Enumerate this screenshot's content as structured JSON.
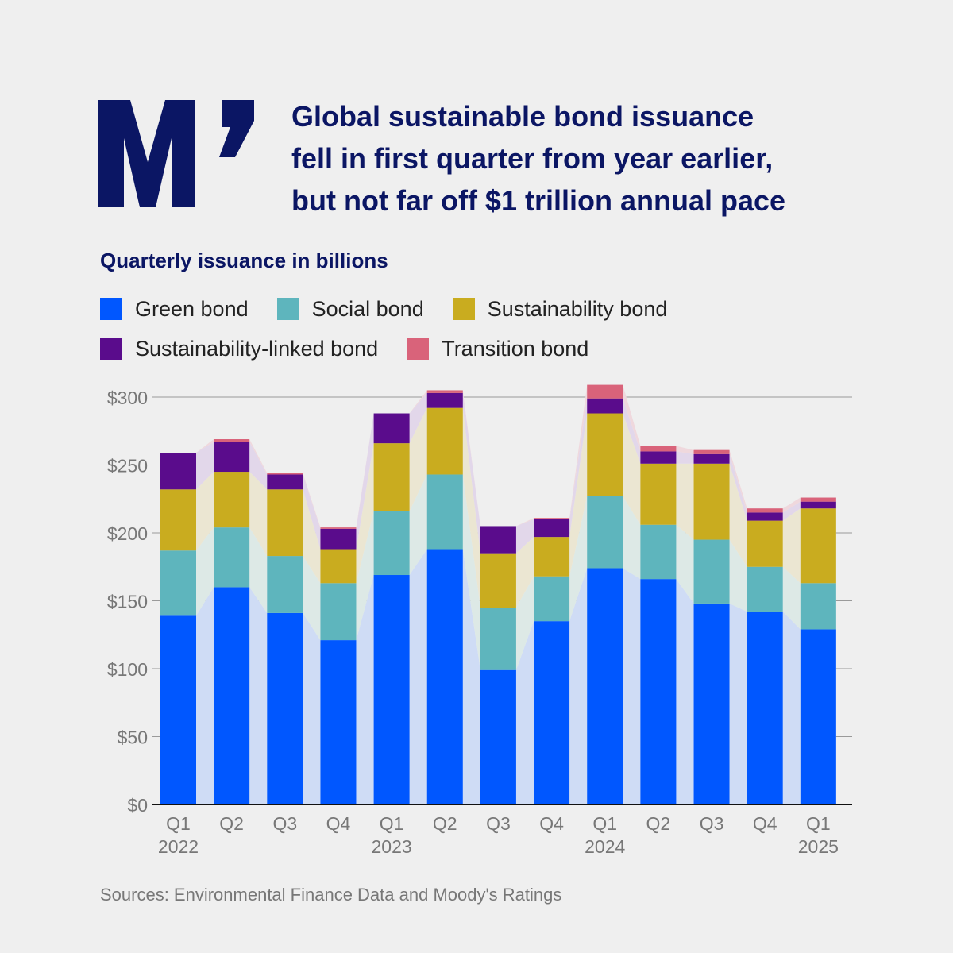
{
  "header": {
    "logo_text": "M’",
    "title_lines": [
      "Global sustainable bond issuance",
      "fell in first quarter from year earlier,",
      "but not far off $1 trillion annual pace"
    ],
    "subtitle": "Quarterly issuance in billions"
  },
  "legend": [
    {
      "label": "Green bond",
      "color": "#0057ff"
    },
    {
      "label": "Social bond",
      "color": "#5eb5bd"
    },
    {
      "label": "Sustainability bond",
      "color": "#c9ac1f"
    },
    {
      "label": "Sustainability-linked bond",
      "color": "#5a0c8c"
    },
    {
      "label": "Transition bond",
      "color": "#d9637a"
    }
  ],
  "source": "Sources: Environmental Finance Data and Moody's Ratings",
  "chart_data": {
    "type": "bar",
    "stacked": true,
    "categories": [
      "Q1 2022",
      "Q2 2022",
      "Q3 2022",
      "Q4 2022",
      "Q1 2023",
      "Q2 2023",
      "Q3 2023",
      "Q4 2023",
      "Q1 2024",
      "Q2 2024",
      "Q3 2024",
      "Q4 2024",
      "Q1 2025"
    ],
    "tick_labels": [
      {
        "q": "Q1",
        "year": "2022"
      },
      {
        "q": "Q2",
        "year": ""
      },
      {
        "q": "Q3",
        "year": ""
      },
      {
        "q": "Q4",
        "year": ""
      },
      {
        "q": "Q1",
        "year": "2023"
      },
      {
        "q": "Q2",
        "year": ""
      },
      {
        "q": "Q3",
        "year": ""
      },
      {
        "q": "Q4",
        "year": ""
      },
      {
        "q": "Q1",
        "year": "2024"
      },
      {
        "q": "Q2",
        "year": ""
      },
      {
        "q": "Q3",
        "year": ""
      },
      {
        "q": "Q4",
        "year": ""
      },
      {
        "q": "Q1",
        "year": "2025"
      }
    ],
    "series": [
      {
        "name": "Green bond",
        "color": "#0057ff",
        "band": "#cfdcf5",
        "values": [
          139,
          160,
          141,
          121,
          169,
          188,
          99,
          135,
          174,
          166,
          148,
          142,
          129
        ]
      },
      {
        "name": "Social bond",
        "color": "#5eb5bd",
        "band": "#dde9e6",
        "values": [
          48,
          44,
          42,
          42,
          47,
          55,
          46,
          33,
          53,
          40,
          47,
          33,
          34
        ]
      },
      {
        "name": "Sustainability bond",
        "color": "#c9ac1f",
        "band": "#ebe6d2",
        "values": [
          45,
          41,
          49,
          25,
          50,
          49,
          40,
          29,
          61,
          45,
          56,
          34,
          55
        ]
      },
      {
        "name": "Sustainability-linked bond",
        "color": "#5a0c8c",
        "band": "#e2d7ea",
        "values": [
          27,
          22,
          11,
          15,
          22,
          11,
          20,
          13,
          11,
          9,
          7,
          6,
          5
        ]
      },
      {
        "name": "Transition bond",
        "color": "#d9637a",
        "band": "#efd8dd",
        "values": [
          0,
          2,
          1,
          1,
          0,
          2,
          0,
          1,
          10,
          4,
          3,
          3,
          3
        ]
      }
    ],
    "ylim": [
      0,
      300
    ],
    "yticks": [
      0,
      50,
      100,
      150,
      200,
      250,
      300
    ],
    "ytick_labels": [
      "$0",
      "$50",
      "$100",
      "$150",
      "$200",
      "$250",
      "$300"
    ],
    "grid": true
  }
}
